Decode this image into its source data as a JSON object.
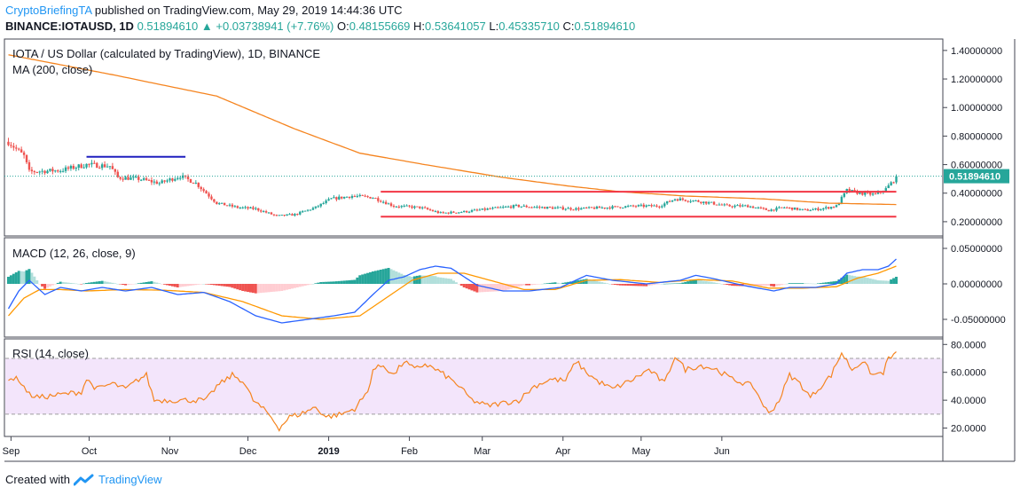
{
  "header": {
    "author": "CryptoBriefingTA",
    "published_text": " published on TradingView.com, May 29, 2019 14:44:36 UTC",
    "symbol": "BINANCE:IOTAUSD, 1D",
    "last": "0.51894610",
    "arrow": "▲",
    "change": "+0.03738941 (+7.76%)",
    "o_label": "O:",
    "o_value": "0.48155669",
    "h_label": "H:",
    "h_value": "0.53641057",
    "l_label": "L:",
    "l_value": "0.45335710",
    "c_label": "C:",
    "c_value": "0.51894610"
  },
  "footer": {
    "created_with": "Created with",
    "brand": "TradingView"
  },
  "colors": {
    "up": "#26a69a",
    "down": "#ef5350",
    "ma": "#f5841f",
    "macd": "#2962ff",
    "signal": "#ff9800",
    "rsi": "#f5841f",
    "rsi_band": "#f3e5fb",
    "support": "#f23645",
    "blue_line": "#1f1fbf"
  },
  "chart_data": [
    {
      "type": "candlestick",
      "title": "IOTA / US Dollar (calculated by TradingView), 1D, BINANCE",
      "indicator_label": "MA (200, close)",
      "y_ticks": [
        "1.40000000",
        "1.20000000",
        "1.00000000",
        "0.80000000",
        "0.60000000",
        "0.40000000",
        "0.20000000"
      ],
      "ylim": [
        0.1,
        1.48
      ],
      "last_price_label": "0.51894610",
      "last_price": 0.519,
      "x_ticks": [
        "Sep",
        "Oct",
        "Nov",
        "Dec",
        "2019",
        "Feb",
        "Mar",
        "Apr",
        "May",
        "Jun"
      ],
      "price_anchors": [
        [
          0,
          0.76
        ],
        [
          6,
          0.66
        ],
        [
          8,
          0.55
        ],
        [
          20,
          0.56
        ],
        [
          30,
          0.6
        ],
        [
          39,
          0.59
        ],
        [
          42,
          0.51
        ],
        [
          50,
          0.5
        ],
        [
          58,
          0.47
        ],
        [
          66,
          0.52
        ],
        [
          72,
          0.47
        ],
        [
          80,
          0.33
        ],
        [
          88,
          0.3
        ],
        [
          95,
          0.29
        ],
        [
          103,
          0.24
        ],
        [
          110,
          0.25
        ],
        [
          118,
          0.3
        ],
        [
          124,
          0.36
        ],
        [
          132,
          0.38
        ],
        [
          140,
          0.37
        ],
        [
          148,
          0.31
        ],
        [
          158,
          0.3
        ],
        [
          166,
          0.26
        ],
        [
          175,
          0.27
        ],
        [
          185,
          0.29
        ],
        [
          195,
          0.31
        ],
        [
          205,
          0.3
        ],
        [
          218,
          0.29
        ],
        [
          230,
          0.3
        ],
        [
          242,
          0.31
        ],
        [
          250,
          0.31
        ],
        [
          256,
          0.36
        ],
        [
          262,
          0.35
        ],
        [
          270,
          0.33
        ],
        [
          276,
          0.31
        ],
        [
          284,
          0.31
        ],
        [
          292,
          0.28
        ],
        [
          298,
          0.3
        ],
        [
          306,
          0.28
        ],
        [
          312,
          0.29
        ],
        [
          318,
          0.31
        ],
        [
          322,
          0.42
        ],
        [
          327,
          0.4
        ],
        [
          333,
          0.39
        ],
        [
          337,
          0.43
        ],
        [
          340,
          0.49
        ],
        [
          341,
          0.519
        ]
      ],
      "ma200_anchors": [
        [
          0,
          1.37
        ],
        [
          40,
          1.23
        ],
        [
          80,
          1.08
        ],
        [
          110,
          0.85
        ],
        [
          135,
          0.68
        ],
        [
          160,
          0.6
        ],
        [
          190,
          0.51
        ],
        [
          215,
          0.45
        ],
        [
          235,
          0.41
        ],
        [
          260,
          0.38
        ],
        [
          290,
          0.36
        ],
        [
          315,
          0.33
        ],
        [
          341,
          0.32
        ]
      ],
      "annotations": [
        {
          "type": "hline",
          "from": 30,
          "to": 68,
          "y": 0.655,
          "color": "blue_line"
        },
        {
          "type": "hline",
          "from": 143,
          "to": 341,
          "y": 0.41,
          "color": "support"
        },
        {
          "type": "hline",
          "from": 143,
          "to": 341,
          "y": 0.235,
          "color": "support"
        }
      ]
    },
    {
      "type": "macd",
      "indicator_label": "MACD (12, 26, close, 9)",
      "y_ticks": [
        "0.05000000",
        "0.00000000",
        "-0.05000000"
      ],
      "ylim": [
        -0.075,
        0.065
      ],
      "macd_anchors": [
        [
          0,
          -0.035
        ],
        [
          4,
          -0.01
        ],
        [
          8,
          0.005
        ],
        [
          14,
          -0.015
        ],
        [
          20,
          -0.005
        ],
        [
          28,
          -0.01
        ],
        [
          36,
          -0.005
        ],
        [
          45,
          -0.01
        ],
        [
          55,
          -0.005
        ],
        [
          65,
          -0.015
        ],
        [
          75,
          -0.012
        ],
        [
          85,
          -0.025
        ],
        [
          95,
          -0.045
        ],
        [
          105,
          -0.055
        ],
        [
          115,
          -0.05
        ],
        [
          125,
          -0.045
        ],
        [
          133,
          -0.04
        ],
        [
          140,
          -0.015
        ],
        [
          146,
          0.005
        ],
        [
          152,
          0.01
        ],
        [
          158,
          0.02
        ],
        [
          164,
          0.025
        ],
        [
          170,
          0.022
        ],
        [
          180,
          -0.002
        ],
        [
          190,
          -0.01
        ],
        [
          200,
          -0.01
        ],
        [
          212,
          -0.005
        ],
        [
          222,
          0.012
        ],
        [
          232,
          0.005
        ],
        [
          245,
          0.0
        ],
        [
          258,
          0.005
        ],
        [
          264,
          0.012
        ],
        [
          270,
          0.008
        ],
        [
          282,
          -0.002
        ],
        [
          294,
          -0.01
        ],
        [
          300,
          -0.005
        ],
        [
          310,
          -0.005
        ],
        [
          318,
          0.0
        ],
        [
          322,
          0.015
        ],
        [
          328,
          0.02
        ],
        [
          334,
          0.02
        ],
        [
          338,
          0.025
        ],
        [
          341,
          0.035
        ]
      ],
      "signal_anchors": [
        [
          0,
          -0.045
        ],
        [
          6,
          -0.02
        ],
        [
          12,
          -0.008
        ],
        [
          20,
          -0.008
        ],
        [
          30,
          -0.01
        ],
        [
          45,
          -0.008
        ],
        [
          60,
          -0.009
        ],
        [
          75,
          -0.012
        ],
        [
          90,
          -0.025
        ],
        [
          105,
          -0.045
        ],
        [
          120,
          -0.05
        ],
        [
          135,
          -0.045
        ],
        [
          145,
          -0.02
        ],
        [
          155,
          0.005
        ],
        [
          165,
          0.015
        ],
        [
          175,
          0.015
        ],
        [
          185,
          0.005
        ],
        [
          198,
          -0.008
        ],
        [
          210,
          -0.008
        ],
        [
          222,
          0.005
        ],
        [
          235,
          0.006
        ],
        [
          250,
          0.002
        ],
        [
          265,
          0.006
        ],
        [
          278,
          0.004
        ],
        [
          292,
          -0.006
        ],
        [
          305,
          -0.006
        ],
        [
          318,
          -0.004
        ],
        [
          326,
          0.008
        ],
        [
          334,
          0.015
        ],
        [
          341,
          0.025
        ]
      ]
    },
    {
      "type": "rsi",
      "indicator_label": "RSI (14, close)",
      "y_ticks": [
        "80.0000",
        "60.0000",
        "40.0000",
        "20.0000"
      ],
      "ylim": [
        14,
        84
      ],
      "band": [
        30,
        70
      ],
      "rsi_anchors": [
        [
          0,
          56
        ],
        [
          4,
          55
        ],
        [
          8,
          44
        ],
        [
          12,
          42
        ],
        [
          20,
          44
        ],
        [
          28,
          46
        ],
        [
          30,
          55
        ],
        [
          34,
          48
        ],
        [
          40,
          52
        ],
        [
          45,
          48
        ],
        [
          50,
          55
        ],
        [
          53,
          58
        ],
        [
          56,
          40
        ],
        [
          62,
          40
        ],
        [
          70,
          40
        ],
        [
          76,
          40
        ],
        [
          80,
          50
        ],
        [
          86,
          58
        ],
        [
          90,
          54
        ],
        [
          94,
          40
        ],
        [
          100,
          30
        ],
        [
          104,
          20
        ],
        [
          108,
          28
        ],
        [
          112,
          30
        ],
        [
          118,
          35
        ],
        [
          122,
          28
        ],
        [
          128,
          30
        ],
        [
          133,
          34
        ],
        [
          138,
          46
        ],
        [
          140,
          62
        ],
        [
          144,
          65
        ],
        [
          148,
          58
        ],
        [
          152,
          68
        ],
        [
          156,
          62
        ],
        [
          160,
          66
        ],
        [
          166,
          60
        ],
        [
          172,
          52
        ],
        [
          178,
          40
        ],
        [
          184,
          36
        ],
        [
          190,
          38
        ],
        [
          196,
          40
        ],
        [
          202,
          50
        ],
        [
          208,
          55
        ],
        [
          214,
          54
        ],
        [
          218,
          68
        ],
        [
          222,
          60
        ],
        [
          226,
          54
        ],
        [
          232,
          48
        ],
        [
          240,
          55
        ],
        [
          246,
          62
        ],
        [
          252,
          52
        ],
        [
          256,
          72
        ],
        [
          260,
          62
        ],
        [
          266,
          65
        ],
        [
          272,
          62
        ],
        [
          278,
          55
        ],
        [
          286,
          50
        ],
        [
          292,
          30
        ],
        [
          296,
          40
        ],
        [
          300,
          58
        ],
        [
          304,
          52
        ],
        [
          308,
          42
        ],
        [
          312,
          50
        ],
        [
          316,
          58
        ],
        [
          320,
          74
        ],
        [
          324,
          62
        ],
        [
          328,
          68
        ],
        [
          332,
          58
        ],
        [
          336,
          60
        ],
        [
          338,
          70
        ],
        [
          341,
          73
        ]
      ]
    }
  ]
}
